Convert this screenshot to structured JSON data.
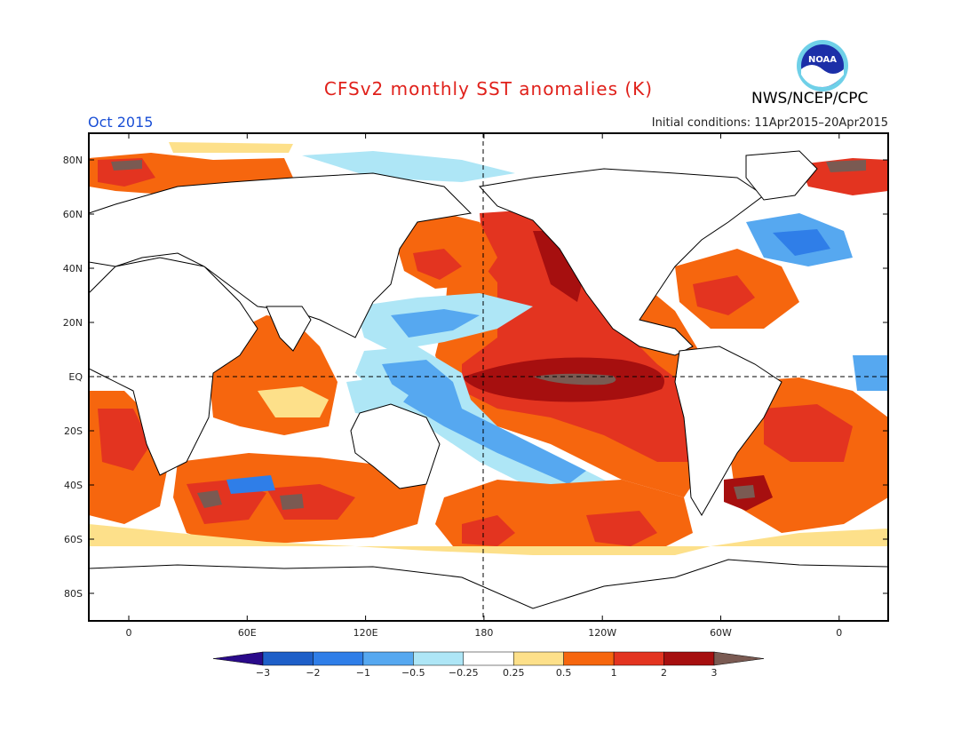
{
  "map": {
    "title": "CFSv2 monthly SST anomalies (K)",
    "agency": "NWS/NCEP/CPC",
    "logo_text": "NOAA",
    "period": "Oct 2015",
    "initial_conditions": "Initial conditions: 11Apr2015–20Apr2015",
    "lat_labels": [
      "80N",
      "60N",
      "40N",
      "20N",
      "EQ",
      "20S",
      "40S",
      "60S",
      "80S"
    ],
    "lon_labels": [
      "0",
      "60E",
      "120E",
      "180",
      "120W",
      "60W",
      "0"
    ],
    "colorbar": {
      "ticks": [
        "−3",
        "−2",
        "−1",
        "−0.5",
        "−0.25",
        "0.25",
        "0.5",
        "1",
        "2",
        "3"
      ],
      "colors": [
        "#2a0a8a",
        "#1e5fc8",
        "#2f7ee8",
        "#56a8f0",
        "#aee6f6",
        "#ffffff",
        "#fde08a",
        "#f6660e",
        "#e33420",
        "#a60f0f",
        "#7a5a52"
      ]
    },
    "colors": {
      "title": "#e0201a",
      "period": "#1a4fd6",
      "frame": "#000000"
    }
  }
}
